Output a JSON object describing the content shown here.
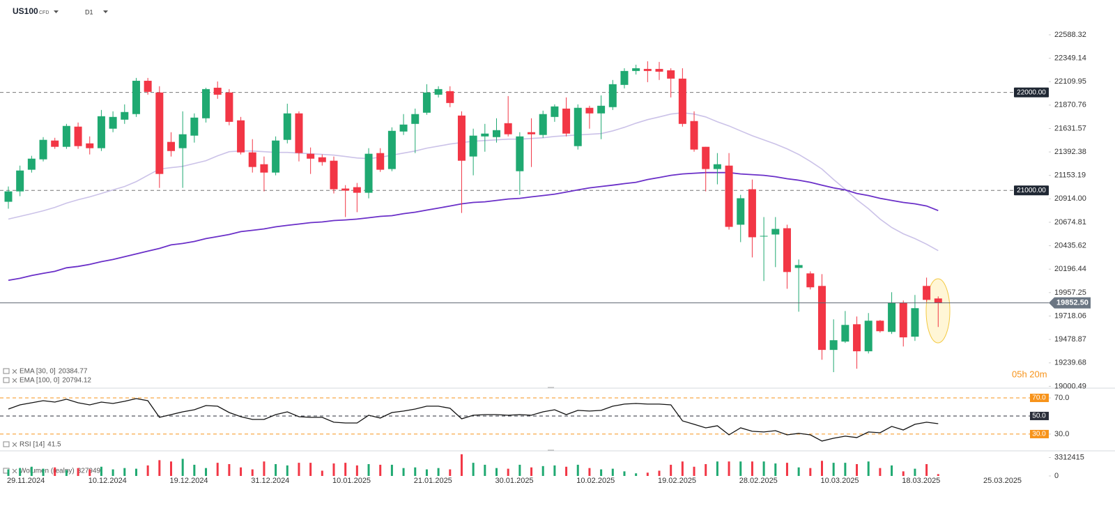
{
  "header": {
    "symbol": "US100",
    "market": "CFD",
    "interval": "D1"
  },
  "chart_data": [
    {
      "type": "candlestick",
      "categories": [
        "29.11.2024",
        null,
        null,
        null,
        null,
        null,
        null,
        "10.12.2024",
        null,
        null,
        null,
        null,
        null,
        null,
        "19.12.2024",
        null,
        null,
        null,
        null,
        null,
        null,
        "31.12.2024",
        null,
        null,
        null,
        null,
        null,
        null,
        "10.01.2025",
        null,
        null,
        null,
        null,
        null,
        null,
        "21.01.2025",
        null,
        null,
        null,
        null,
        null,
        null,
        "30.01.2025",
        null,
        null,
        null,
        null,
        null,
        null,
        "10.02.2025",
        null,
        null,
        null,
        null,
        null,
        null,
        "19.02.2025",
        null,
        null,
        null,
        null,
        null,
        null,
        "28.02.2025",
        null,
        null,
        null,
        null,
        null,
        null,
        "10.03.2025",
        null,
        null,
        null,
        null,
        null,
        null,
        "18.03.2025",
        null,
        null,
        null,
        null,
        null,
        null,
        "25.03.2025"
      ],
      "open": [
        20884,
        20990,
        21211,
        21317,
        21509,
        21445,
        21651,
        21480,
        21431,
        21630,
        21722,
        21779,
        22119,
        21999,
        21495,
        21431,
        21559,
        21736,
        22048,
        21999,
        21715,
        21388,
        21267,
        21182,
        21516,
        21786,
        21374,
        21338,
        21303,
        21019,
        21033,
        20976,
        21381,
        21218,
        21601,
        21679,
        21793,
        21977,
        22013,
        21764,
        21346,
        21551,
        21544,
        21686,
        21196,
        21594,
        21566,
        21750,
        21835,
        21452,
        21843,
        21786,
        21850,
        22077,
        22219,
        22240,
        22240,
        22226,
        22141,
        21708,
        21445,
        21218,
        21253,
        20650,
        21012,
        20529,
        20550,
        20614,
        20209,
        20153,
        20025,
        19372,
        19457,
        19634,
        19358,
        19670,
        19556,
        19855,
        19507,
        20025,
        19897,
        null,
        null,
        null,
        null
      ],
      "high": [
        21040,
        21253,
        21353,
        21544,
        21537,
        21679,
        21693,
        21551,
        21821,
        21807,
        21878,
        22148,
        22148,
        22063,
        21594,
        21807,
        21786,
        22048,
        22112,
        22034,
        21750,
        21523,
        21346,
        21551,
        21885,
        21807,
        21438,
        21367,
        21346,
        21054,
        21076,
        21431,
        21431,
        21644,
        21779,
        21835,
        22084,
        22063,
        22063,
        21807,
        21630,
        21679,
        21736,
        21963,
        21594,
        21736,
        21814,
        21878,
        21949,
        21878,
        21864,
        21970,
        22127,
        22247,
        22283,
        22318,
        22311,
        22247,
        22247,
        21807,
        21445,
        21381,
        21381,
        20955,
        21111,
        20728,
        20728,
        20650,
        20295,
        20174,
        20146,
        19684,
        19769,
        19713,
        19748,
        19677,
        19961,
        19876,
        19933,
        20110,
        19918,
        null,
        null,
        null,
        null
      ],
      "low": [
        20813,
        20941,
        21182,
        21296,
        21424,
        21424,
        21424,
        21367,
        21402,
        21594,
        21679,
        21750,
        21977,
        21026,
        21346,
        21026,
        21488,
        21693,
        21935,
        21665,
        21367,
        21182,
        20990,
        21154,
        21480,
        21296,
        21168,
        21253,
        20969,
        20728,
        20778,
        20919,
        21189,
        21196,
        21566,
        21381,
        21772,
        21949,
        21850,
        20770,
        21154,
        21395,
        21488,
        21551,
        20955,
        21239,
        21537,
        21700,
        21551,
        21417,
        21630,
        21523,
        21821,
        22041,
        22183,
        22105,
        22127,
        21949,
        21651,
        21395,
        20990,
        21062,
        20600,
        20472,
        20316,
        20075,
        20217,
        19996,
        19762,
        19989,
        19272,
        19145,
        19443,
        19180,
        19336,
        19549,
        19535,
        19407,
        19464,
        19862,
        19606,
        null,
        null,
        null,
        null
      ],
      "close": [
        20990,
        21203,
        21324,
        21516,
        21445,
        21658,
        21452,
        21431,
        21757,
        21750,
        21800,
        22119,
        22006,
        21168,
        21402,
        21573,
        21743,
        22034,
        21977,
        21700,
        21388,
        21239,
        21182,
        21509,
        21786,
        21381,
        21324,
        21289,
        21012,
        20998,
        20976,
        21374,
        21211,
        21608,
        21672,
        21779,
        21999,
        22034,
        21892,
        21303,
        21559,
        21580,
        21615,
        21573,
        21551,
        21573,
        21779,
        21857,
        21580,
        21843,
        21786,
        21864,
        22084,
        22219,
        22247,
        22219,
        22212,
        22141,
        21679,
        21417,
        21218,
        21267,
        20628,
        20920,
        20522,
        20536,
        20607,
        20167,
        20238,
        20011,
        19372,
        19471,
        19627,
        19358,
        19670,
        19563,
        19855,
        19500,
        19798,
        19883,
        19852.5,
        null,
        null,
        null,
        null
      ],
      "up_color": "#1fa971",
      "down_color": "#f23645",
      "series": [
        {
          "name": "EMA [30, 0]",
          "color": "#cbc2e8",
          "values": [
            20707,
            20735,
            20763,
            20792,
            20827,
            20870,
            20905,
            20934,
            20969,
            21005,
            21040,
            21090,
            21154,
            21218,
            21232,
            21246,
            21275,
            21303,
            21353,
            21395,
            21402,
            21402,
            21395,
            21388,
            21388,
            21381,
            21374,
            21367,
            21360,
            21346,
            21331,
            21324,
            21338,
            21360,
            21381,
            21402,
            21431,
            21452,
            21473,
            21488,
            21502,
            21509,
            21516,
            21523,
            21523,
            21530,
            21537,
            21551,
            21559,
            21566,
            21573,
            21580,
            21608,
            21644,
            21686,
            21722,
            21750,
            21779,
            21793,
            21779,
            21750,
            21700,
            21658,
            21608,
            21559,
            21516,
            21473,
            21424,
            21367,
            21296,
            21218,
            21111,
            21012,
            20905,
            20813,
            20707,
            20621,
            20557,
            20508,
            20451,
            20384.77,
            null,
            null,
            null,
            null
          ]
        },
        {
          "name": "EMA [100, 0]",
          "color": "#6a2fc8",
          "values": [
            20082,
            20103,
            20131,
            20153,
            20174,
            20210,
            20224,
            20245,
            20273,
            20295,
            20323,
            20352,
            20380,
            20408,
            20444,
            20458,
            20479,
            20508,
            20529,
            20550,
            20579,
            20593,
            20607,
            20628,
            20643,
            20657,
            20671,
            20678,
            20692,
            20699,
            20707,
            20721,
            20735,
            20742,
            20763,
            20778,
            20799,
            20820,
            20841,
            20863,
            20877,
            20884,
            20898,
            20912,
            20919,
            20934,
            20948,
            20962,
            20983,
            21005,
            21026,
            21040,
            21054,
            21069,
            21083,
            21111,
            21132,
            21154,
            21168,
            21175,
            21182,
            21182,
            21182,
            21168,
            21161,
            21154,
            21140,
            21119,
            21104,
            21083,
            21054,
            21026,
            21005,
            20969,
            20948,
            20919,
            20898,
            20877,
            20863,
            20841,
            20794.12,
            null,
            null,
            null,
            null
          ]
        }
      ],
      "ylim": [
        18996,
        22787
      ],
      "yticks": [
        22588.32,
        22349.14,
        22109.95,
        21870.76,
        21631.57,
        21392.38,
        21153.19,
        {
          "value": 20914,
          "label": "20914.00"
        },
        20674.81,
        20435.62,
        20196.44,
        19957.25,
        19718.06,
        19478.87,
        19239.68,
        19000.49
      ],
      "levels": [
        {
          "value": 22000,
          "label": "22000.00"
        },
        {
          "value": 21000,
          "label": "21000.00"
        }
      ],
      "last_price": {
        "value": 19852.5,
        "label": "19852.50"
      },
      "timer": "05h 20m"
    },
    {
      "type": "line",
      "series": [
        {
          "name": "RSI [14]",
          "color": "#111111",
          "values": [
            57.7,
            62.3,
            64.6,
            66.9,
            65.4,
            68.5,
            64.6,
            62.3,
            65.4,
            63.8,
            66.2,
            69.2,
            66.9,
            48.5,
            51.5,
            54.6,
            56.9,
            61.5,
            60.8,
            53.8,
            49.2,
            46.2,
            46.2,
            51.5,
            54.6,
            49.2,
            48.5,
            48.5,
            43.1,
            42.3,
            42.3,
            50.8,
            47.7,
            53.8,
            55.4,
            57.7,
            60.8,
            60.8,
            58.5,
            46.9,
            50.8,
            51.5,
            51.5,
            50.8,
            51.5,
            50.8,
            54.6,
            56.9,
            51.5,
            56.2,
            55.4,
            56.2,
            60.8,
            63.1,
            63.8,
            63.1,
            63.1,
            62.3,
            44.6,
            40.8,
            36.9,
            39.2,
            29.2,
            36.9,
            33.1,
            32.3,
            33.8,
            29.2,
            30.8,
            29.2,
            22.3,
            25.4,
            27.7,
            26.2,
            32.3,
            31.5,
            38.5,
            34.6,
            40.8,
            43.1,
            41.5,
            null,
            null,
            null,
            null
          ]
        }
      ],
      "ylim": [
        13,
        80
      ],
      "yticks": [
        {
          "value": 70,
          "label": "70.0"
        },
        {
          "value": 30,
          "label": "30.0"
        }
      ],
      "levels": [
        {
          "value": 70,
          "label": "70.0",
          "color": "#f7931a"
        },
        {
          "value": 50,
          "label": "50.0",
          "color": "#2a2e39"
        },
        {
          "value": 30,
          "label": "30.0",
          "color": "#f7931a"
        }
      ]
    },
    {
      "type": "bar",
      "series": [
        {
          "name": "Wolumen (realny)",
          "values": [
            1180000,
            1416000,
            1652000,
            1298000,
            1534000,
            1062000,
            1416000,
            1180000,
            1652000,
            1180000,
            1416000,
            1298000,
            1888000,
            2832000,
            2596000,
            3068000,
            2006000,
            1416000,
            2360000,
            2124000,
            1534000,
            1180000,
            2596000,
            2124000,
            1888000,
            2360000,
            2360000,
            944000,
            2242000,
            2360000,
            1888000,
            2124000,
            2006000,
            2006000,
            1416000,
            1534000,
            1180000,
            1416000,
            1180000,
            3894000,
            2360000,
            2006000,
            1416000,
            1298000,
            2006000,
            1534000,
            1770000,
            1888000,
            1652000,
            2006000,
            1416000,
            1180000,
            1298000,
            826000,
            472000,
            590000,
            944000,
            2006000,
            2596000,
            1652000,
            2124000,
            2596000,
            2596000,
            2596000,
            2596000,
            2596000,
            2242000,
            2360000,
            1534000,
            1416000,
            2714000,
            2360000,
            2360000,
            2124000,
            2596000,
            1416000,
            1888000,
            826000,
            1298000,
            2124000,
            327949,
            null,
            null,
            null,
            null
          ]
        }
      ],
      "ylim": [
        0,
        4000000
      ],
      "yticks": [
        0,
        3312415
      ]
    }
  ]
}
